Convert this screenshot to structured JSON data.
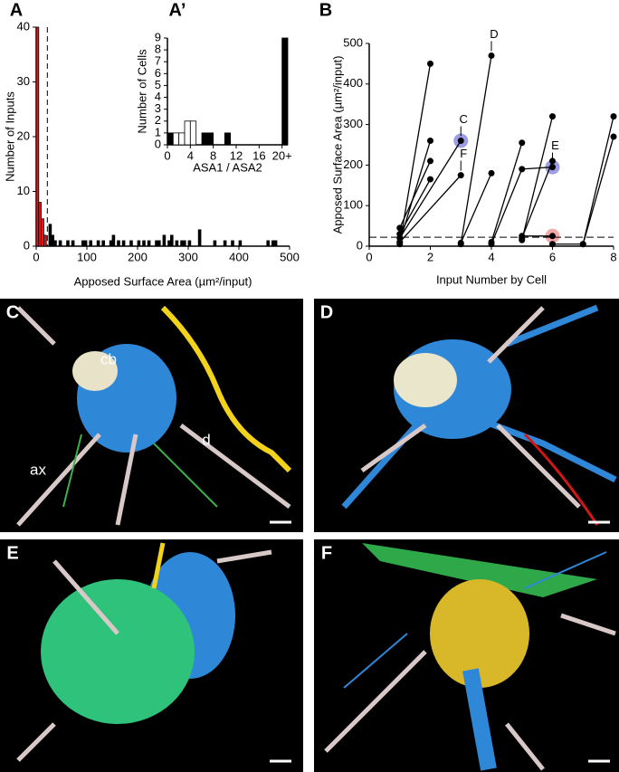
{
  "chart_data": [
    {
      "type": "histogram",
      "panel_label": "A",
      "xlabel": "Apposed Surface Area  (µm²/input)",
      "ylabel": "Number of Inputs",
      "bins": [
        0,
        5,
        10,
        15,
        20,
        25,
        30,
        35,
        40,
        45,
        50,
        55,
        60,
        65,
        70,
        75,
        80,
        85,
        90,
        95,
        100,
        105,
        110,
        115,
        120,
        125,
        130,
        135,
        140,
        145,
        150,
        155,
        160,
        165,
        170,
        175,
        180,
        185,
        190,
        195,
        200,
        205,
        210,
        215,
        220,
        225,
        230,
        235,
        240,
        245,
        250,
        255,
        260,
        265,
        270,
        275,
        280,
        285,
        290,
        295,
        300,
        305,
        310,
        315,
        320,
        325,
        330,
        335,
        340,
        345,
        350,
        355,
        360,
        365,
        370,
        375,
        380,
        385,
        390,
        395,
        400,
        405,
        410,
        415,
        420,
        425,
        430,
        435,
        440,
        445,
        450,
        455,
        460,
        465,
        470,
        475,
        480,
        485,
        490,
        495,
        500
      ],
      "counts": [
        40,
        8,
        5,
        2,
        0,
        4,
        2,
        1,
        0,
        1,
        0,
        0,
        1,
        0,
        1,
        0,
        0,
        0,
        1,
        1,
        0,
        1,
        0,
        0,
        1,
        0,
        1,
        0,
        0,
        1,
        2,
        0,
        1,
        0,
        1,
        0,
        0,
        1,
        0,
        0,
        1,
        0,
        1,
        0,
        1,
        0,
        0,
        1,
        1,
        0,
        2,
        0,
        1,
        2,
        0,
        1,
        0,
        1,
        1,
        0,
        1,
        0,
        0,
        0,
        3,
        0,
        0,
        0,
        0,
        0,
        1,
        0,
        0,
        0,
        1,
        0,
        0,
        1,
        0,
        0,
        1,
        0,
        0,
        0,
        0,
        0,
        0,
        0,
        0,
        0,
        0,
        1,
        0,
        1,
        1,
        0,
        0,
        0,
        0,
        0
      ],
      "color": "#000000",
      "highlight": {
        "xmin": 0,
        "xmax": 20,
        "color": "#e8141c"
      },
      "reference_x": 22,
      "xlim": [
        0,
        500
      ],
      "xticks": [
        0,
        100,
        200,
        300,
        400,
        500
      ],
      "ylim": [
        0,
        40
      ],
      "yticks": [
        0,
        10,
        20,
        30,
        40
      ]
    },
    {
      "type": "histogram",
      "panel_label": "A’",
      "xlabel": "ASA1 / ASA2",
      "ylabel": "Number of Cells",
      "bins": [
        0,
        1,
        2,
        3,
        4,
        5,
        6,
        7,
        8,
        9,
        10,
        11,
        12,
        13,
        14,
        15,
        16,
        17,
        18,
        19,
        20,
        21
      ],
      "counts": [
        1,
        1,
        1,
        2,
        2,
        0,
        1,
        1,
        0,
        0,
        1,
        0,
        0,
        0,
        0,
        0,
        0,
        0,
        0,
        0,
        9
      ],
      "color": "#000000",
      "highlight": {
        "xmin": 1,
        "xmax": 5,
        "color": "#ffffff"
      },
      "xlim": [
        0,
        21
      ],
      "xticks": [
        0,
        4,
        8,
        12,
        16,
        {
          "value": 20,
          "label": "20+"
        }
      ],
      "ylim": [
        0,
        9
      ],
      "yticks": [
        0,
        1,
        2,
        3,
        4,
        5,
        6,
        7,
        8,
        9
      ]
    },
    {
      "type": "line",
      "panel_label": "B",
      "xlabel": "Input Number by Cell",
      "ylabel": "Apposed Surface Area  (µm²/input)",
      "color": "#000000",
      "reference_y": 22,
      "series": [
        {
          "x": [
            1,
            2
          ],
          "values": [
            5,
            450
          ]
        },
        {
          "x": [
            1,
            2
          ],
          "values": [
            10,
            260
          ]
        },
        {
          "x": [
            1,
            2
          ],
          "values": [
            45,
            210
          ]
        },
        {
          "x": [
            1,
            2
          ],
          "values": [
            30,
            165
          ]
        },
        {
          "x": [
            1,
            3
          ],
          "values": [
            20,
            260
          ]
        },
        {
          "x": [
            1,
            3
          ],
          "values": [
            10,
            175
          ]
        },
        {
          "x": [
            3,
            4
          ],
          "values": [
            5,
            470
          ]
        },
        {
          "x": [
            3,
            4
          ],
          "values": [
            8,
            180
          ]
        },
        {
          "x": [
            4,
            5
          ],
          "values": [
            10,
            255
          ]
        },
        {
          "x": [
            4,
            5,
            6
          ],
          "values": [
            5,
            190,
            195
          ]
        },
        {
          "x": [
            5,
            6
          ],
          "values": [
            15,
            320
          ]
        },
        {
          "x": [
            5,
            6
          ],
          "values": [
            20,
            210
          ]
        },
        {
          "x": [
            6,
            7,
            8
          ],
          "values": [
            5,
            5,
            320
          ]
        },
        {
          "x": [
            7,
            8
          ],
          "values": [
            5,
            270
          ]
        },
        {
          "x": [
            5,
            6
          ],
          "values": [
            25,
            25
          ]
        }
      ],
      "annotations": [
        {
          "text": "C",
          "x": 3,
          "y": 260,
          "color": "#5b5bd6"
        },
        {
          "text": "D",
          "x": 4,
          "y": 470
        },
        {
          "text": "E",
          "x": 6,
          "y": 195,
          "color": "#5b5bd6"
        },
        {
          "text": "F",
          "x": 3,
          "y": 175
        },
        {
          "x": 6,
          "y": 25,
          "color": "#f07070"
        }
      ],
      "xlim": [
        0,
        8
      ],
      "xticks": [
        0,
        2,
        4,
        6,
        8
      ],
      "ylim": [
        0,
        500
      ],
      "yticks": [
        0,
        100,
        200,
        300,
        400,
        500
      ]
    }
  ],
  "panels": [
    {
      "letter": "C",
      "labels": [
        "cb",
        "d",
        "ax"
      ]
    },
    {
      "letter": "D",
      "labels": []
    },
    {
      "letter": "E",
      "labels": []
    },
    {
      "letter": "F",
      "labels": []
    }
  ]
}
